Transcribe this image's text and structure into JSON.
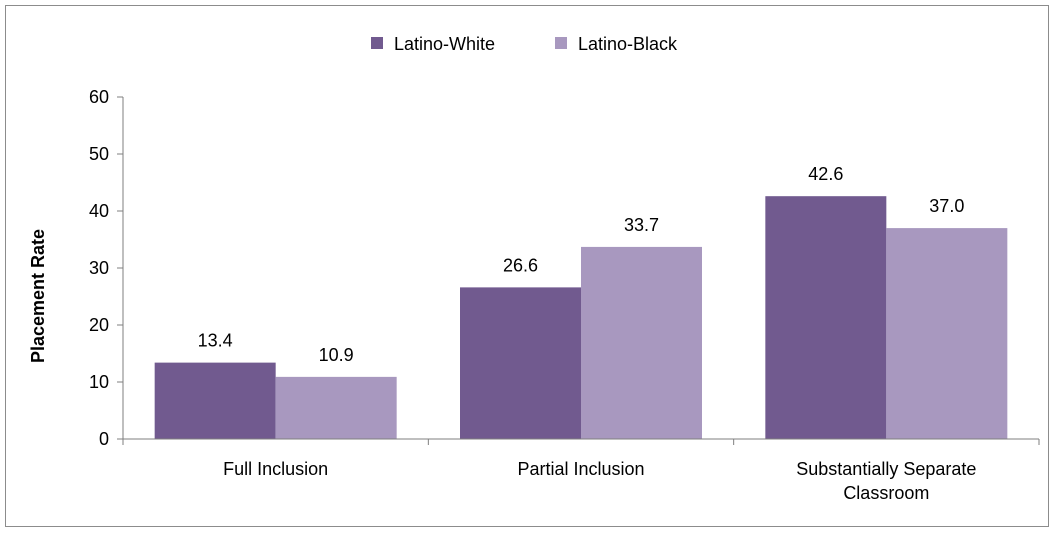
{
  "colors": {
    "series_1": "#715a8f",
    "series_2": "#a898bf",
    "axis": "#7f7f7f",
    "border": "#8c8c8c"
  },
  "chart_data": {
    "type": "bar",
    "title": "",
    "xlabel": "",
    "ylabel": "Placement Rate",
    "ylim": [
      0,
      60
    ],
    "yticks": [
      0,
      10,
      20,
      30,
      40,
      50,
      60
    ],
    "grid": false,
    "legend_position": "top-center",
    "categories": [
      [
        "Full Inclusion"
      ],
      [
        "Partial Inclusion"
      ],
      [
        "Substantially Separate",
        "Classroom"
      ]
    ],
    "series": [
      {
        "name": "Latino-White",
        "values": [
          13.4,
          26.6,
          42.6
        ],
        "labels": [
          "13.4",
          "26.6",
          "42.6"
        ]
      },
      {
        "name": "Latino-Black",
        "values": [
          10.9,
          33.7,
          37.0
        ],
        "labels": [
          "10.9",
          "33.7",
          "37.0"
        ]
      }
    ]
  }
}
